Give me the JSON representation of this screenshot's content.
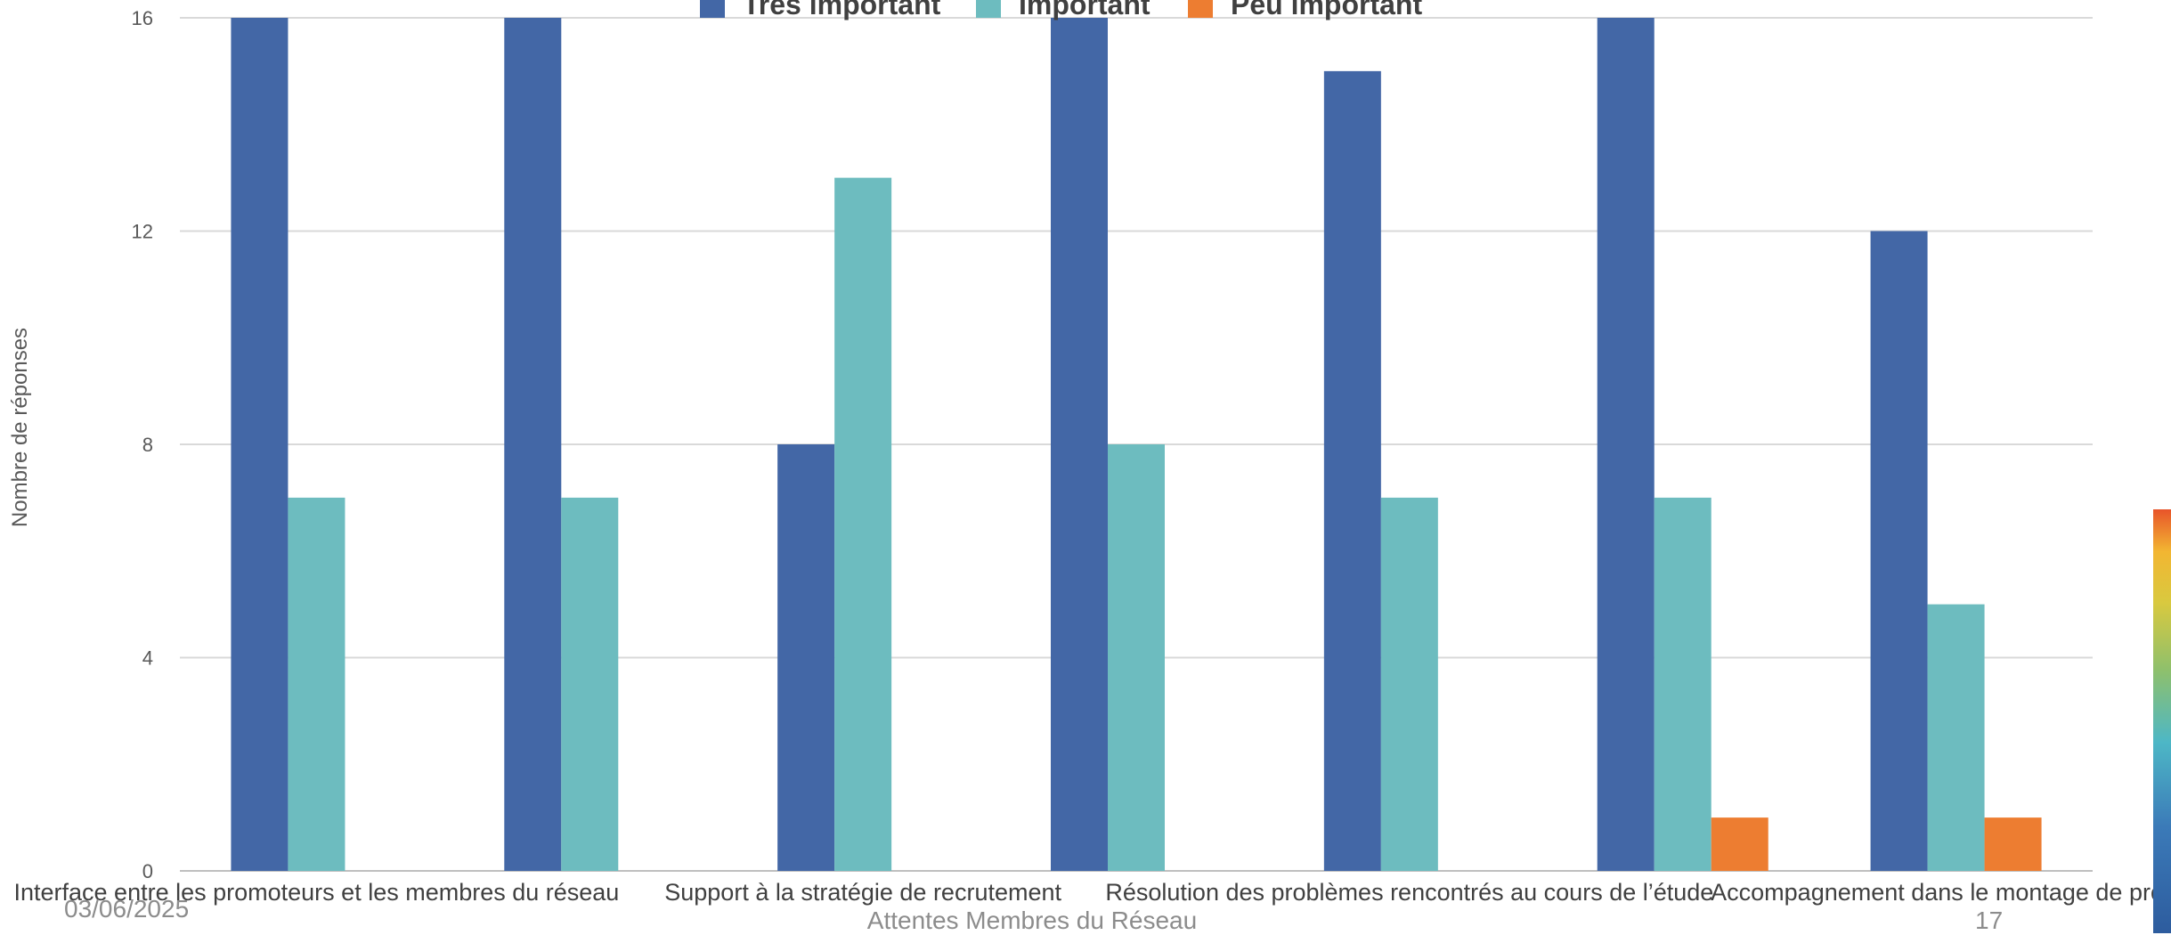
{
  "chart_data": {
    "type": "bar",
    "categories": [
      "Interface entre les promoteurs et les membres du réseau",
      "",
      "Support à la stratégie de recrutement",
      "",
      "Résolution des problèmes rencontrés au cours de l’étude",
      "",
      "Accompagnement dans le montage de projets"
    ],
    "series": [
      {
        "name": "Très important",
        "color": "#4367a6",
        "values": [
          16,
          16,
          8,
          16,
          15,
          16,
          12
        ]
      },
      {
        "name": "Important",
        "color": "#6dbcbf",
        "values": [
          7,
          7,
          13,
          8,
          7,
          7,
          5
        ]
      },
      {
        "name": "Peu important",
        "color": "#ed7d31",
        "values": [
          0,
          0,
          0,
          0,
          0,
          1,
          1
        ]
      }
    ],
    "ylabel": "Nombre de réponses",
    "xlabel": "",
    "ylim": [
      0,
      16
    ],
    "yticks": [
      0,
      4,
      8,
      12,
      16
    ],
    "grid": true,
    "legend_position": "top"
  },
  "footer": {
    "date": "03/06/2025",
    "title": "Attentes Membres du Réseau",
    "page": "17"
  }
}
